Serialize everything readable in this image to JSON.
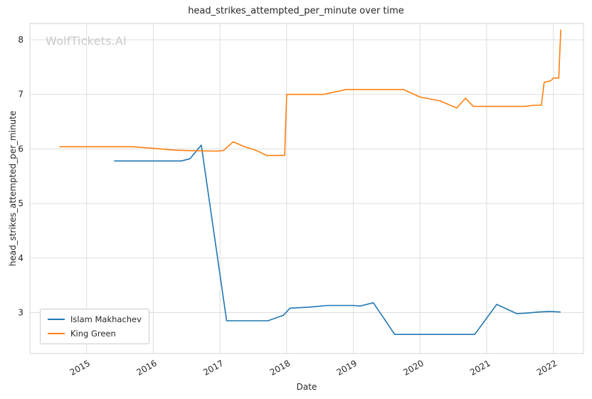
{
  "chart": {
    "title": "head_strikes_attempted_per_minute over time",
    "watermark": "WolfTickets.AI",
    "xlabel": "Date",
    "ylabel": "head_strikes_attempted_per_minute"
  },
  "chart_data": {
    "type": "line",
    "title": "head_strikes_attempted_per_minute over time",
    "xlabel": "Date",
    "ylabel": "head_strikes_attempted_per_minute",
    "xlim": [
      2014.15,
      2022.45
    ],
    "ylim": [
      2.25,
      8.3
    ],
    "x_ticks": [
      2015,
      2016,
      2017,
      2018,
      2019,
      2020,
      2021,
      2022
    ],
    "y_ticks": [
      3,
      4,
      5,
      6,
      7,
      8
    ],
    "grid": true,
    "legend_position": "lower left",
    "colors": {
      "grid": "#dddddd",
      "spine": "#d5d5d5",
      "text": "#262626",
      "watermark": "#c9c9c9"
    },
    "series": [
      {
        "name": "Islam Makhachev",
        "color": "#1f77b4",
        "points": [
          [
            2015.42,
            5.78
          ],
          [
            2016.42,
            5.78
          ],
          [
            2016.55,
            5.82
          ],
          [
            2016.72,
            6.07
          ],
          [
            2017.1,
            2.85
          ],
          [
            2017.72,
            2.85
          ],
          [
            2017.95,
            2.95
          ],
          [
            2018.05,
            3.08
          ],
          [
            2018.35,
            3.1
          ],
          [
            2018.6,
            3.13
          ],
          [
            2019.0,
            3.13
          ],
          [
            2019.1,
            3.12
          ],
          [
            2019.3,
            3.18
          ],
          [
            2019.62,
            2.6
          ],
          [
            2020.5,
            2.6
          ],
          [
            2020.82,
            2.6
          ],
          [
            2021.15,
            3.15
          ],
          [
            2021.45,
            2.98
          ],
          [
            2021.6,
            2.99
          ],
          [
            2021.78,
            3.01
          ],
          [
            2021.95,
            3.02
          ],
          [
            2022.1,
            3.01
          ]
        ]
      },
      {
        "name": "King Green",
        "color": "#ff7f0e",
        "points": [
          [
            2014.6,
            6.04
          ],
          [
            2015.35,
            6.04
          ],
          [
            2015.7,
            6.04
          ],
          [
            2016.0,
            6.01
          ],
          [
            2016.3,
            5.98
          ],
          [
            2016.5,
            5.97
          ],
          [
            2016.95,
            5.96
          ],
          [
            2017.05,
            5.97
          ],
          [
            2017.2,
            6.13
          ],
          [
            2017.35,
            6.05
          ],
          [
            2017.55,
            5.97
          ],
          [
            2017.7,
            5.88
          ],
          [
            2017.97,
            5.88
          ],
          [
            2018.0,
            7.0
          ],
          [
            2018.55,
            7.0
          ],
          [
            2018.9,
            7.09
          ],
          [
            2019.3,
            7.09
          ],
          [
            2019.75,
            7.09
          ],
          [
            2020.0,
            6.95
          ],
          [
            2020.3,
            6.88
          ],
          [
            2020.55,
            6.75
          ],
          [
            2020.68,
            6.93
          ],
          [
            2020.8,
            6.78
          ],
          [
            2021.4,
            6.78
          ],
          [
            2021.58,
            6.78
          ],
          [
            2021.7,
            6.8
          ],
          [
            2021.82,
            6.8
          ],
          [
            2021.86,
            7.22
          ],
          [
            2021.96,
            7.25
          ],
          [
            2022.0,
            7.3
          ],
          [
            2022.08,
            7.3
          ],
          [
            2022.11,
            8.18
          ]
        ]
      }
    ]
  }
}
